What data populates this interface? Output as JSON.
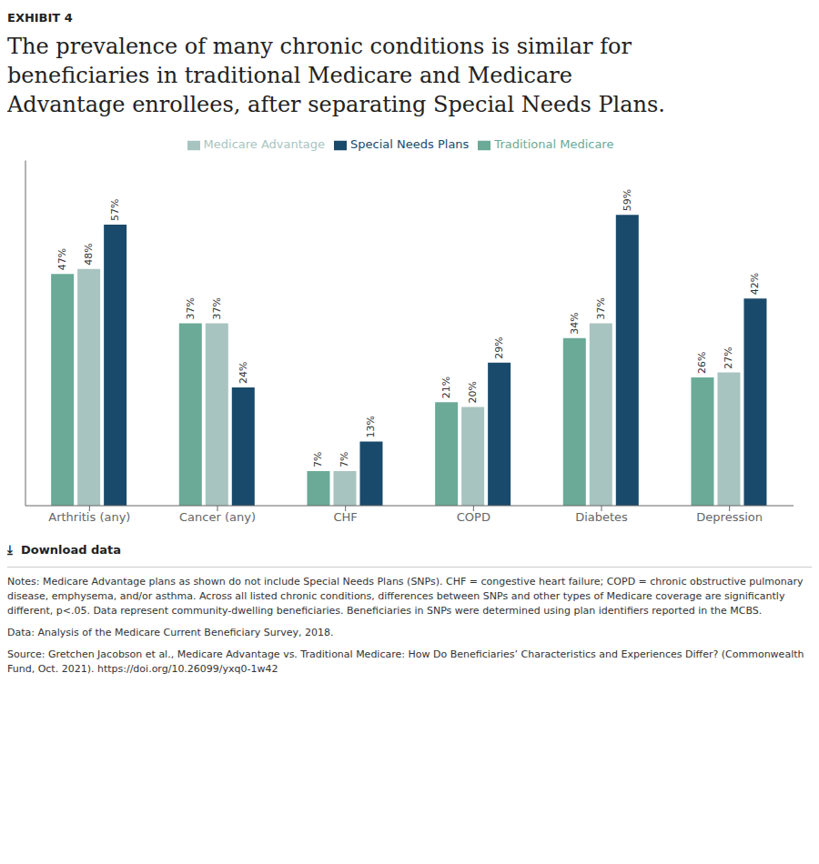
{
  "chart_data": {
    "type": "bar",
    "title": "The prevalence of many chronic conditions is similar for\nbeneficiaries in traditional Medicare and Medicare\nAdvantage enrollees, after separating Special Needs Plans.",
    "annotations": [
      "EXHIBIT 4",
      "⤓  Download data",
      "Notes: Medicare Advantage plans as shown do not include Special Needs Plans (SNPs). CHF = congestive heart failure; COPD = chronic\nobstructive pulmonary disease, emphysema, and/or asthma. Across all listed chronic conditions, differences between SNPs and other\ntypes of Medicare coverage are significantly different, p<.05. Data represent community-dwelling beneficiaries. Beneficiaries in SNPs were\ndetermined using plan identifiers reported in the MCBS.",
      "Data: Analysis of the Medicare Current Beneficiary Survey, 2018.",
      "Source: Gretchen Jacobson et al., Medicare Advantage vs. Traditional Medicare: How Do Beneficiaries’ Characteristics and Experiences Differ? (Commonwealth Fund, Oct. 2021). https://doi.org/10.26099/yxq0-1w42"
    ],
    "categories": [
      "Arthritis (any)",
      "Cancer (any)",
      "CHF",
      "COPD",
      "Diabetes",
      "Depression"
    ],
    "series": [
      {
        "name": "Traditional Medicare",
        "color": "#6aaa96",
        "values": [
          47,
          37,
          7,
          21,
          34,
          26
        ],
        "value_labels": [
          "47%",
          "37%",
          "7%",
          "21%",
          "34%",
          "26%"
        ]
      },
      {
        "name": "Medicare Advantage",
        "color": "#a8c4c0",
        "values": [
          48,
          37,
          7,
          20,
          37,
          27
        ],
        "value_labels": [
          "48%",
          "37%",
          "7%",
          "20%",
          "37%",
          "27%"
        ]
      },
      {
        "name": "Special Needs Plans",
        "color": "#1a4a6b",
        "values": [
          57,
          24,
          13,
          29,
          59,
          42
        ],
        "value_labels": [
          "57%",
          "24%",
          "13%",
          "29%",
          "59%",
          "42%"
        ]
      }
    ],
    "ylim": [
      0,
      70
    ],
    "data_labels": true,
    "tick_labels": "x",
    "grid": false,
    "legend": "top"
  }
}
